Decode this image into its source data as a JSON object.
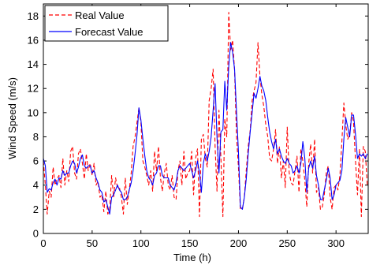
{
  "chart_data": {
    "type": "line",
    "xlabel": "Time (h)",
    "ylabel": "Wind Speed (m/s)",
    "xlim": [
      0,
      333
    ],
    "ylim": [
      0,
      19
    ],
    "x_ticks": [
      0,
      50,
      100,
      150,
      200,
      250,
      300
    ],
    "y_ticks": [
      0,
      2,
      4,
      6,
      8,
      10,
      12,
      14,
      16,
      18
    ],
    "grid": false,
    "legend_position": "top-left",
    "series": [
      {
        "name": "Real Value",
        "color": "#ff0000",
        "style": "dashed",
        "x": [
          0,
          2,
          4,
          6,
          8,
          10,
          12,
          14,
          16,
          18,
          20,
          22,
          24,
          26,
          28,
          30,
          32,
          34,
          36,
          38,
          40,
          42,
          44,
          46,
          48,
          50,
          52,
          54,
          56,
          58,
          60,
          62,
          64,
          66,
          68,
          70,
          72,
          74,
          76,
          78,
          80,
          82,
          84,
          86,
          88,
          90,
          92,
          94,
          96,
          98,
          100,
          102,
          104,
          106,
          108,
          110,
          112,
          114,
          116,
          118,
          120,
          122,
          124,
          126,
          128,
          130,
          132,
          134,
          136,
          138,
          140,
          142,
          144,
          146,
          148,
          150,
          152,
          154,
          156,
          158,
          160,
          162,
          164,
          166,
          168,
          170,
          172,
          174,
          176,
          178,
          180,
          182,
          184,
          186,
          188,
          190,
          192,
          194,
          196,
          198,
          200,
          202,
          204,
          206,
          208,
          210,
          212,
          214,
          216,
          218,
          220,
          222,
          224,
          226,
          228,
          230,
          232,
          234,
          236,
          238,
          240,
          242,
          244,
          246,
          248,
          250,
          252,
          254,
          256,
          258,
          260,
          262,
          264,
          266,
          268,
          270,
          272,
          274,
          276,
          278,
          280,
          282,
          284,
          286,
          288,
          290,
          292,
          294,
          296,
          298,
          300,
          302,
          304,
          306,
          308,
          310,
          312,
          314,
          316,
          318,
          320,
          322,
          324,
          326,
          328,
          330,
          332
        ],
        "values": [
          6.0,
          4.0,
          1.6,
          3.5,
          3.0,
          5.5,
          4.0,
          4.5,
          4.8,
          3.8,
          6.2,
          4.0,
          5.2,
          4.3,
          6.8,
          7.2,
          5.0,
          4.5,
          6.6,
          7.0,
          5.8,
          4.5,
          6.6,
          5.2,
          5.8,
          4.8,
          5.8,
          4.0,
          4.3,
          3.0,
          3.2,
          1.8,
          3.5,
          1.6,
          2.0,
          4.8,
          3.0,
          4.6,
          3.8,
          3.8,
          3.0,
          1.6,
          4.6,
          2.4,
          3.6,
          5.0,
          7.2,
          8.0,
          9.2,
          10.4,
          9.2,
          6.0,
          5.5,
          4.8,
          4.0,
          5.2,
          3.5,
          6.8,
          5.2,
          7.2,
          4.6,
          3.5,
          5.0,
          5.8,
          4.0,
          3.6,
          4.8,
          3.0,
          2.8,
          5.2,
          6.0,
          4.0,
          6.8,
          4.5,
          5.0,
          5.2,
          6.8,
          3.2,
          6.2,
          7.0,
          1.4,
          7.8,
          8.2,
          6.2,
          5.5,
          11.0,
          12.0,
          13.6,
          7.2,
          3.5,
          10.2,
          6.2,
          1.4,
          9.5,
          8.0,
          18.3,
          15.2,
          16.0,
          13.5,
          8.0,
          5.5,
          2.0,
          2.0,
          3.0,
          5.2,
          7.2,
          8.5,
          11.0,
          11.8,
          12.5,
          15.8,
          13.0,
          11.5,
          10.5,
          9.0,
          8.0,
          6.2,
          6.0,
          7.0,
          8.6,
          5.8,
          7.2,
          4.6,
          6.0,
          3.8,
          8.8,
          5.0,
          4.2,
          4.0,
          5.2,
          6.4,
          3.4,
          7.0,
          6.0,
          4.4,
          2.2,
          5.8,
          7.4,
          5.0,
          7.8,
          3.4,
          3.8,
          2.0,
          2.2,
          3.2,
          5.0,
          5.6,
          3.0,
          2.0,
          3.8,
          4.0,
          3.6,
          4.8,
          7.6,
          10.8,
          9.0,
          7.8,
          8.2,
          10.0,
          9.2,
          6.0,
          3.2,
          7.0,
          1.4,
          7.2,
          6.8,
          4.0
        ]
      },
      {
        "name": "Forecast Value",
        "color": "#0000ff",
        "style": "solid",
        "x": [
          0,
          2,
          4,
          6,
          8,
          10,
          12,
          14,
          16,
          18,
          20,
          22,
          24,
          26,
          28,
          30,
          32,
          34,
          36,
          38,
          40,
          42,
          44,
          46,
          48,
          50,
          52,
          54,
          56,
          58,
          60,
          62,
          64,
          66,
          68,
          70,
          72,
          74,
          76,
          78,
          80,
          82,
          84,
          86,
          88,
          90,
          92,
          94,
          96,
          98,
          100,
          102,
          104,
          106,
          108,
          110,
          112,
          114,
          116,
          118,
          120,
          122,
          124,
          126,
          128,
          130,
          132,
          134,
          136,
          138,
          140,
          142,
          144,
          146,
          148,
          150,
          152,
          154,
          156,
          158,
          160,
          162,
          164,
          166,
          168,
          170,
          172,
          174,
          176,
          178,
          180,
          182,
          184,
          186,
          188,
          190,
          192,
          194,
          196,
          198,
          200,
          202,
          204,
          206,
          208,
          210,
          212,
          214,
          216,
          218,
          220,
          222,
          224,
          226,
          228,
          230,
          232,
          234,
          236,
          238,
          240,
          242,
          244,
          246,
          248,
          250,
          252,
          254,
          256,
          258,
          260,
          262,
          264,
          266,
          268,
          270,
          272,
          274,
          276,
          278,
          280,
          282,
          284,
          286,
          288,
          290,
          292,
          294,
          296,
          298,
          300,
          302,
          304,
          306,
          308,
          310,
          312,
          314,
          316,
          318,
          320,
          322,
          324,
          326,
          328,
          330,
          332
        ],
        "values": [
          6.2,
          5.6,
          3.4,
          3.7,
          3.6,
          4.2,
          4.5,
          4.0,
          4.6,
          4.5,
          5.2,
          4.8,
          5.0,
          5.0,
          5.6,
          6.0,
          5.8,
          5.0,
          5.5,
          6.2,
          6.5,
          5.6,
          5.4,
          5.6,
          5.6,
          5.0,
          5.2,
          4.6,
          4.2,
          3.6,
          3.4,
          2.6,
          2.8,
          2.2,
          1.6,
          3.0,
          3.2,
          3.6,
          4.0,
          3.6,
          3.4,
          2.8,
          2.8,
          3.0,
          3.6,
          4.2,
          5.2,
          6.6,
          8.2,
          10.4,
          9.4,
          7.8,
          6.4,
          5.2,
          4.6,
          4.4,
          4.0,
          4.8,
          5.0,
          5.6,
          5.6,
          4.8,
          4.6,
          4.6,
          4.6,
          4.0,
          3.8,
          3.6,
          4.2,
          5.2,
          5.6,
          5.4,
          5.2,
          5.4,
          5.6,
          5.8,
          5.2,
          4.6,
          5.2,
          6.0,
          5.0,
          3.4,
          5.8,
          6.6,
          6.0,
          6.8,
          8.0,
          10.2,
          12.4,
          8.0,
          5.0,
          8.4,
          8.6,
          12.6,
          10.2,
          13.8,
          15.8,
          15.0,
          13.6,
          10.0,
          6.8,
          2.2,
          2.0,
          3.0,
          4.5,
          6.6,
          8.4,
          10.0,
          11.6,
          11.2,
          12.0,
          13.0,
          12.2,
          11.8,
          11.0,
          9.6,
          8.4,
          7.6,
          7.0,
          7.8,
          6.6,
          7.0,
          6.4,
          6.0,
          5.8,
          6.2,
          5.8,
          5.6,
          5.0,
          5.2,
          5.6,
          5.0,
          5.8,
          7.6,
          6.2,
          3.4,
          5.4,
          6.0,
          5.4,
          6.4,
          4.8,
          4.0,
          2.8,
          2.8,
          3.6,
          4.4,
          5.4,
          4.6,
          2.8,
          3.2,
          4.0,
          4.2,
          4.4,
          5.2,
          7.8,
          9.6,
          8.8,
          8.0,
          9.8,
          9.8,
          8.2,
          6.2,
          6.6,
          6.4,
          6.6,
          6.2,
          6.6
        ]
      }
    ]
  }
}
